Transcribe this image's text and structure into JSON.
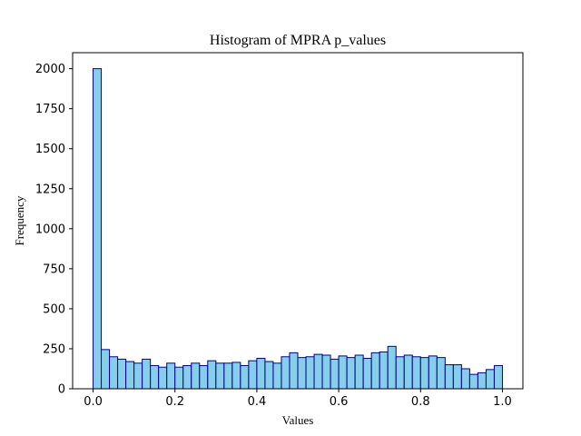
{
  "chart_data": {
    "type": "bar",
    "title": "Histogram of MPRA p_values",
    "xlabel": "Values",
    "ylabel": "Frequency",
    "xlim": [
      -0.05,
      1.05
    ],
    "ylim": [
      0,
      2100
    ],
    "grid": false,
    "bar_fill": "#87CEEB",
    "bar_edge": "#00008B",
    "bin_width": 0.02,
    "bin_starts": [
      0.0,
      0.02,
      0.04,
      0.06,
      0.08,
      0.1,
      0.12,
      0.14,
      0.16,
      0.18,
      0.2,
      0.22,
      0.24,
      0.26,
      0.28,
      0.3,
      0.32,
      0.34,
      0.36,
      0.38,
      0.4,
      0.42,
      0.44,
      0.46,
      0.48,
      0.5,
      0.52,
      0.54,
      0.56,
      0.58,
      0.6,
      0.62,
      0.64,
      0.66,
      0.68,
      0.7,
      0.72,
      0.74,
      0.76,
      0.78,
      0.8,
      0.82,
      0.84,
      0.86,
      0.88,
      0.9,
      0.92,
      0.94,
      0.96,
      0.98
    ],
    "values": [
      2000,
      245,
      200,
      185,
      170,
      160,
      185,
      145,
      135,
      160,
      135,
      145,
      160,
      145,
      175,
      160,
      160,
      165,
      145,
      175,
      190,
      170,
      160,
      200,
      225,
      195,
      200,
      215,
      210,
      185,
      205,
      195,
      210,
      190,
      225,
      230,
      265,
      200,
      210,
      200,
      195,
      205,
      195,
      150,
      150,
      125,
      90,
      100,
      120,
      145
    ],
    "xticks": [
      0.0,
      0.2,
      0.4,
      0.6,
      0.8,
      1.0
    ],
    "xtick_labels": [
      "0.0",
      "0.2",
      "0.4",
      "0.6",
      "0.8",
      "1.0"
    ],
    "yticks": [
      0,
      250,
      500,
      750,
      1000,
      1250,
      1500,
      1750,
      2000
    ],
    "ytick_labels": [
      "0",
      "250",
      "500",
      "750",
      "1000",
      "1250",
      "1500",
      "1750",
      "2000"
    ]
  }
}
